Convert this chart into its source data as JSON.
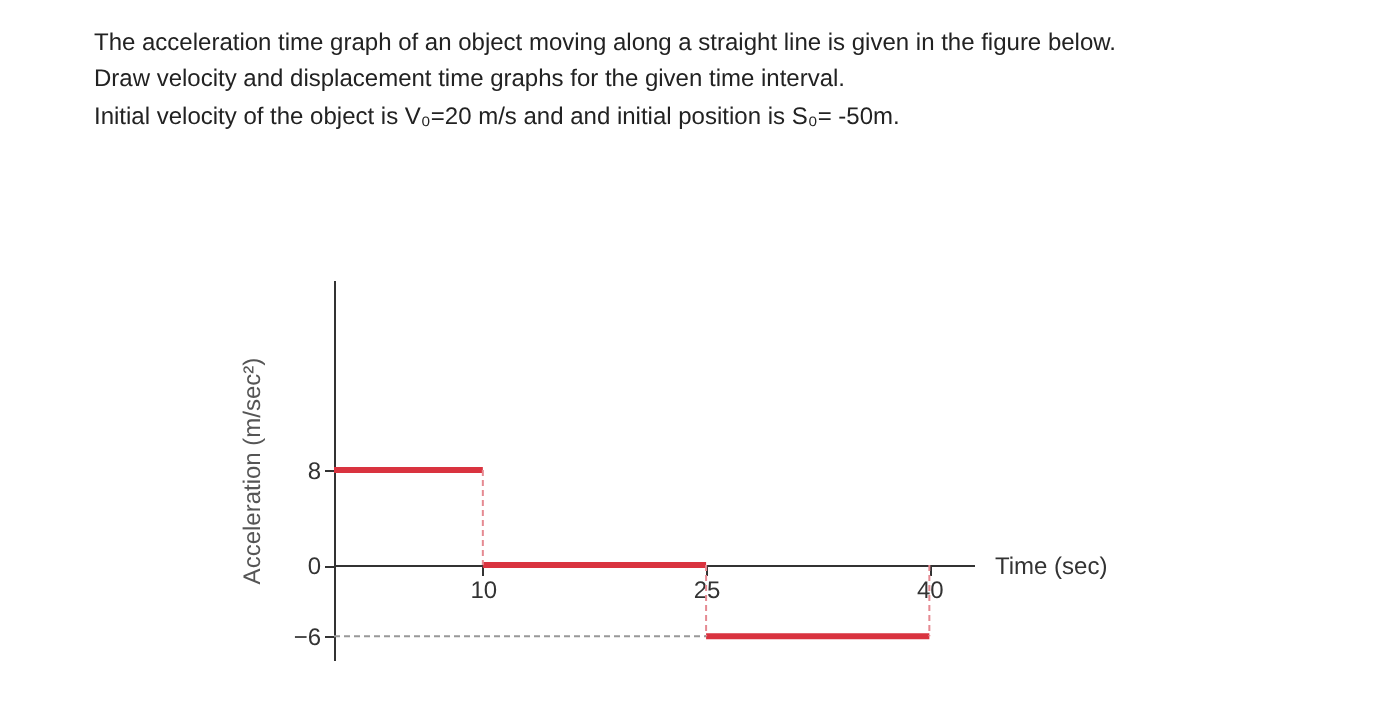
{
  "chart_data": {
    "type": "line",
    "title": "The acceleration time graph of an object moving along a straight line is given in the figure below.",
    "subtitle": "Draw velocity and displacement time graphs for the given time interval.",
    "annotations": [
      "Initial velocity of the object is V₀=20 m/s and and initial position is S₀= -50m."
    ],
    "xlabel": "Time (sec)",
    "ylabel": "Acceleration (m/sec²)",
    "series": [
      {
        "color": "#d9333f",
        "x": [
          0,
          10,
          null,
          10,
          25,
          null,
          25,
          40
        ],
        "values": [
          8,
          8,
          null,
          0,
          0,
          null,
          -6,
          -6
        ],
        "line_style": "solid"
      },
      {
        "color": "#e58a92",
        "x": [
          10,
          10,
          null,
          25,
          25,
          null,
          40,
          40
        ],
        "values": [
          8,
          0,
          null,
          0,
          -6,
          null,
          0,
          -6
        ],
        "line_style": "dashed"
      },
      {
        "color": "#999999",
        "x": [
          0,
          25
        ],
        "values": [
          -6,
          -6
        ],
        "line_style": "dashed"
      }
    ],
    "xlim": [
      0,
      43
    ],
    "ylim": [
      -8,
      24
    ],
    "xticks": [
      10,
      25,
      40
    ],
    "yticks": [
      -6,
      0,
      8
    ]
  }
}
